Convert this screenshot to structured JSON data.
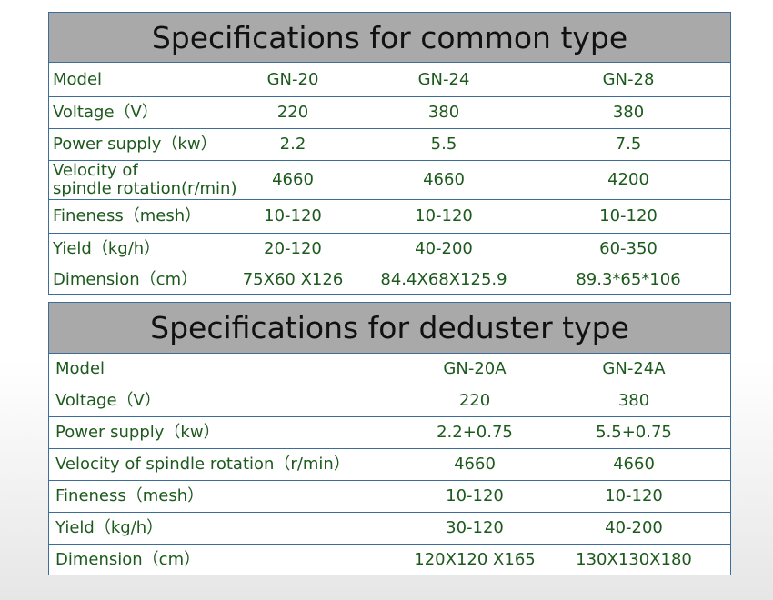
{
  "tables": [
    {
      "title": "Specifications for common type",
      "rows": [
        [
          "Model",
          "GN-20",
          "GN-24",
          "GN-28"
        ],
        [
          "Voltage（V）",
          "220",
          "380",
          "380"
        ],
        [
          "Power supply（kw）",
          "2.2",
          "5.5",
          "7.5"
        ],
        [
          "Velocity of\nspindle rotation(r/min)",
          "4660",
          "4660",
          "4200"
        ],
        [
          "Fineness（mesh）",
          "10-120",
          "10-120",
          "10-120"
        ],
        [
          "Yield（kg/h）",
          "20-120",
          "40-200",
          "60-350"
        ],
        [
          "Dimension（cm）",
          "75X60 X126",
          "84.4X68X125.9",
          "89.3*65*106"
        ]
      ]
    },
    {
      "title": "Specifications for deduster type",
      "rows": [
        [
          "Model",
          "GN-20A",
          "GN-24A"
        ],
        [
          "Voltage（V）",
          "220",
          "380"
        ],
        [
          "Power supply（kw）",
          "2.2+0.75",
          "5.5+0.75"
        ],
        [
          "Velocity of spindle rotation（r/min）",
          "4660",
          "4660"
        ],
        [
          "Fineness（mesh）",
          "10-120",
          "10-120"
        ],
        [
          "Yield（kg/h）",
          "30-120",
          "40-200"
        ],
        [
          "Dimension（cm）",
          "120X120 X165",
          "130X130X180"
        ]
      ]
    }
  ]
}
